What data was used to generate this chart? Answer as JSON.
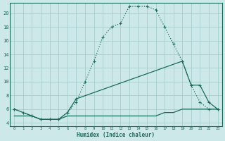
{
  "xlabel": "Humidex (Indice chaleur)",
  "background_color": "#cce8e8",
  "grid_color": "#a8cccc",
  "line_color": "#1a6b5a",
  "xlim": [
    -0.5,
    23.5
  ],
  "ylim": [
    3.5,
    21.5
  ],
  "xtick_vals": [
    0,
    1,
    2,
    3,
    4,
    5,
    6,
    7,
    8,
    9,
    10,
    11,
    12,
    13,
    14,
    15,
    16,
    17,
    18,
    19,
    20,
    21,
    22,
    23
  ],
  "ytick_vals": [
    4,
    6,
    8,
    10,
    12,
    14,
    16,
    18,
    20
  ],
  "line1_x": [
    0,
    1,
    2,
    3,
    4,
    5,
    6,
    7,
    8,
    9,
    10,
    11,
    12,
    13,
    14,
    15,
    16,
    17,
    18,
    19,
    20,
    21,
    22,
    23
  ],
  "line1_y": [
    6,
    5.5,
    5,
    4.5,
    4.5,
    4.5,
    5.5,
    7,
    10,
    13,
    16.5,
    18,
    18.5,
    21,
    21,
    21,
    20.5,
    18,
    15.5,
    13,
    9.5,
    7,
    6,
    6
  ],
  "line2_x": [
    0,
    2,
    3,
    4,
    5,
    6,
    7,
    19,
    20,
    21,
    22,
    23
  ],
  "line2_y": [
    6,
    5,
    4.5,
    4.5,
    4.5,
    5.5,
    7.5,
    13,
    9.5,
    9.5,
    7,
    6
  ],
  "line3_x": [
    0,
    2,
    3,
    4,
    5,
    6,
    7,
    8,
    9,
    10,
    11,
    12,
    13,
    14,
    15,
    16,
    17,
    18,
    19,
    20,
    21,
    22,
    23
  ],
  "line3_y": [
    5,
    5,
    4.5,
    4.5,
    4.5,
    5,
    5,
    5,
    5,
    5,
    5,
    5,
    5,
    5,
    5,
    5,
    5.5,
    5.5,
    6,
    6,
    6,
    6,
    6
  ]
}
